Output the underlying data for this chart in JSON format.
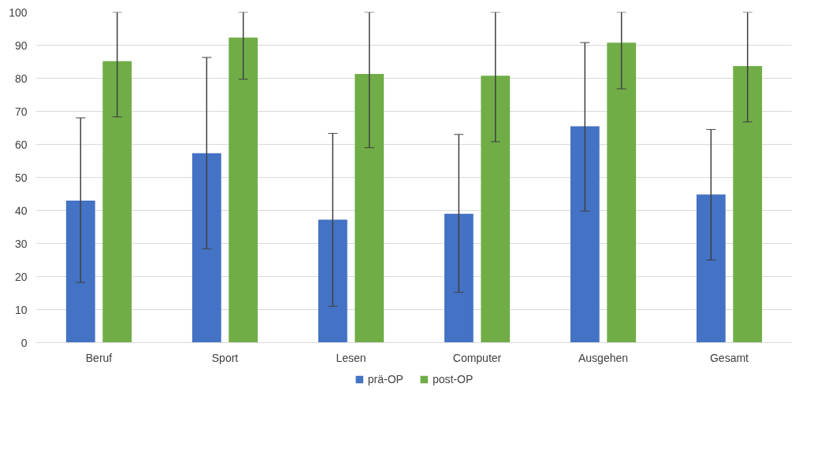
{
  "chart_data": {
    "type": "bar",
    "categories": [
      "Beruf",
      "Sport",
      "Lesen",
      "Computer",
      "Ausgehen",
      "Gesamt"
    ],
    "series": [
      {
        "name": "prä-OP",
        "color": "#4472c4",
        "values": [
          43,
          57.3,
          37.2,
          39,
          65.5,
          44.8
        ],
        "errors": [
          [
            18.2,
            68
          ],
          [
            28.4,
            86.3
          ],
          [
            11,
            63.3
          ],
          [
            15.2,
            63
          ],
          [
            39.8,
            90.8
          ],
          [
            25,
            64.5
          ]
        ]
      },
      {
        "name": "post-OP",
        "color": "#70ad47",
        "values": [
          85.2,
          92.3,
          81.3,
          80.8,
          90.8,
          83.7
        ],
        "errors": [
          [
            68.3,
            100
          ],
          [
            79.7,
            100
          ],
          [
            59,
            100
          ],
          [
            60.8,
            100
          ],
          [
            76.8,
            100
          ],
          [
            66.8,
            100
          ]
        ]
      }
    ],
    "ylim": [
      0,
      100
    ],
    "yticks": [
      0,
      10,
      20,
      30,
      40,
      50,
      60,
      70,
      80,
      90,
      100
    ],
    "grid": "y",
    "legend": "bottom"
  }
}
